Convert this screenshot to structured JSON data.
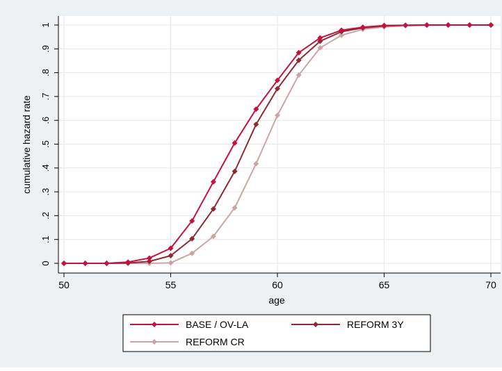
{
  "chart_data": {
    "type": "line",
    "title": "",
    "xlabel": "age",
    "ylabel": "cumulative hazard rate",
    "xlim": [
      50,
      70
    ],
    "ylim": [
      0,
      1
    ],
    "x_ticks": [
      50,
      55,
      60,
      65,
      70
    ],
    "x_tick_labels": [
      "50",
      "55",
      "60",
      "65",
      "70"
    ],
    "y_ticks": [
      0,
      0.1,
      0.2,
      0.3,
      0.4,
      0.5,
      0.6,
      0.7,
      0.8,
      0.9,
      1
    ],
    "y_tick_labels": [
      "0",
      ".1",
      ".2",
      ".3",
      ".4",
      ".5",
      ".6",
      ".7",
      ".8",
      ".9",
      "1"
    ],
    "grid": true,
    "legend_position": "bottom",
    "x": [
      50,
      51,
      52,
      53,
      54,
      55,
      56,
      57,
      58,
      59,
      60,
      61,
      62,
      63,
      64,
      65,
      66,
      67,
      68,
      69,
      70
    ],
    "series": [
      {
        "name": "BASE / OV-LA",
        "color": "#c8103e",
        "values": [
          0,
          0,
          0,
          0.005,
          0.022,
          0.063,
          0.178,
          0.342,
          0.505,
          0.647,
          0.768,
          0.884,
          0.946,
          0.978,
          0.991,
          0.998,
          0.999,
          1,
          1,
          1,
          1
        ]
      },
      {
        "name": "REFORM 3Y",
        "color": "#8e2a34",
        "values": [
          0,
          0,
          0,
          0.001,
          0.008,
          0.032,
          0.103,
          0.228,
          0.386,
          0.583,
          0.733,
          0.852,
          0.932,
          0.972,
          0.988,
          0.996,
          0.999,
          1,
          1,
          1,
          1
        ]
      },
      {
        "name": "REFORM CR",
        "color": "#c9a6a3",
        "values": [
          0,
          0,
          0,
          0,
          0,
          0.002,
          0.042,
          0.113,
          0.233,
          0.418,
          0.621,
          0.79,
          0.904,
          0.957,
          0.982,
          0.992,
          0.997,
          0.999,
          1,
          1,
          1
        ]
      }
    ]
  }
}
